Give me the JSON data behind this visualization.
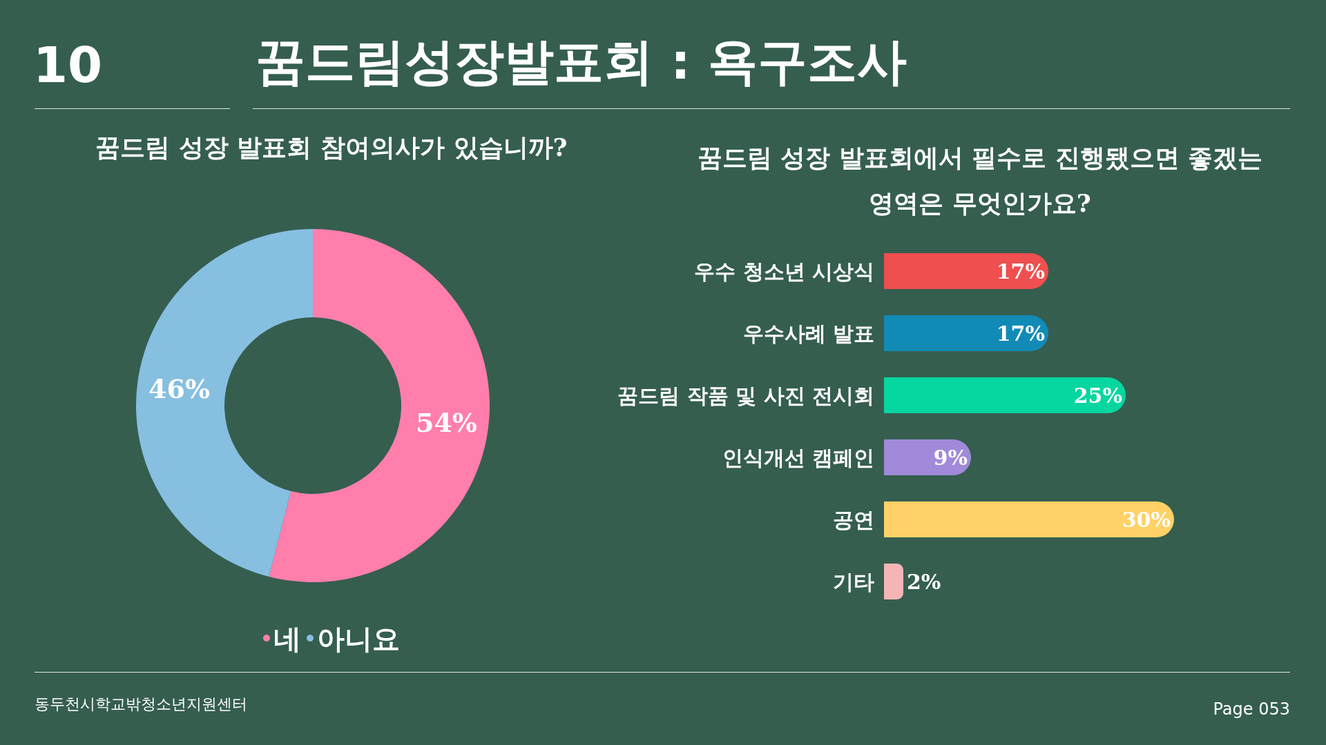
{
  "chart_data": [
    {
      "type": "other",
      "title": "꿈드림성장발표회 : 욕구조사",
      "annotations": [
        "10",
        "동두천시학교밖청소년지원센터",
        "Page 053"
      ]
    },
    {
      "type": "donut",
      "title": "꿈드림 성장 발표회 참여의사가 있습니까?",
      "categories": [
        "네",
        "아니요"
      ],
      "values": [
        54,
        46
      ],
      "colors": [
        "#ff7eac",
        "#86bfe0"
      ],
      "value_labels": [
        "54%",
        "46%"
      ],
      "legend": "bottom"
    },
    {
      "type": "bar",
      "orientation": "horizontal",
      "title": "꿈드림 성장 발표회에서 필수로 진행됐으면 좋겠는\n영역은 무엇인가요?",
      "categories": [
        "우수 청소년 시상식",
        "우수사례 발표",
        "꿈드림 작품 및 사진 전시회",
        "인식개선 캠페인",
        "공연",
        "기타"
      ],
      "values": [
        17,
        17,
        25,
        9,
        30,
        2
      ],
      "colors": [
        "#ef4f4f",
        "#128ab6",
        "#06d6a0",
        "#a18ad9",
        "#ffd166",
        "#f5b5b5"
      ],
      "value_labels": [
        "17%",
        "17%",
        "25%",
        "9%",
        "30%",
        "2%"
      ]
    }
  ]
}
